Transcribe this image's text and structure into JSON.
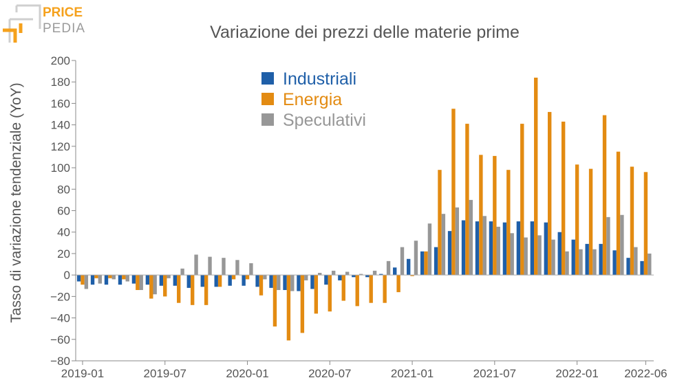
{
  "logo": {
    "line1": "PRICE",
    "line2": "PEDIA",
    "colors": {
      "orange": "#f5a11c",
      "grey": "#9b9b9b"
    }
  },
  "chart_data": {
    "type": "bar",
    "title": "Variazione dei prezzi delle materie prime",
    "xlabel": "",
    "ylabel": "Tasso di variazione tendenziale (YoY)",
    "ylim": [
      -80,
      200
    ],
    "yticks": [
      -80,
      -60,
      -40,
      -20,
      0,
      20,
      40,
      60,
      80,
      100,
      120,
      140,
      160,
      180,
      200
    ],
    "categories": [
      "2019-01",
      "2019-02",
      "2019-03",
      "2019-04",
      "2019-05",
      "2019-06",
      "2019-07",
      "2019-08",
      "2019-09",
      "2019-10",
      "2019-11",
      "2019-12",
      "2020-01",
      "2020-02",
      "2020-03",
      "2020-04",
      "2020-05",
      "2020-06",
      "2020-07",
      "2020-08",
      "2020-09",
      "2020-10",
      "2020-11",
      "2020-12",
      "2021-01",
      "2021-02",
      "2021-03",
      "2021-04",
      "2021-05",
      "2021-06",
      "2021-07",
      "2021-08",
      "2021-09",
      "2021-10",
      "2021-11",
      "2021-12",
      "2022-01",
      "2022-02",
      "2022-03",
      "2022-04",
      "2022-05",
      "2022-06"
    ],
    "xtick_labels": [
      {
        "index": 0,
        "label": "2019-01"
      },
      {
        "index": 6,
        "label": "2019-07"
      },
      {
        "index": 12,
        "label": "2020-01"
      },
      {
        "index": 18,
        "label": "2020-07"
      },
      {
        "index": 24,
        "label": "2021-01"
      },
      {
        "index": 30,
        "label": "2021-07"
      },
      {
        "index": 36,
        "label": "2022-01"
      },
      {
        "index": 41,
        "label": "2022-06"
      }
    ],
    "legend_position": "top-center",
    "series": [
      {
        "name": "Industriali",
        "color": "#1f5fa8",
        "values": [
          -6,
          -9,
          -9,
          -9,
          -8,
          -9,
          -10,
          -10,
          -12,
          -11,
          -11,
          -10,
          -10,
          -11,
          -12,
          -14,
          -15,
          -13,
          -9,
          -5,
          -2,
          -2,
          1,
          7,
          15,
          22,
          26,
          41,
          51,
          50,
          50,
          49,
          50,
          50,
          49,
          40,
          33,
          29,
          29,
          23,
          16,
          13
        ]
      },
      {
        "name": "Energia",
        "color": "#e38b12",
        "values": [
          -9,
          -3,
          -3,
          -4,
          -14,
          -22,
          -20,
          -26,
          -28,
          -28,
          -11,
          -4,
          -4,
          -19,
          -48,
          -61,
          -54,
          -36,
          -34,
          -24,
          -29,
          -26,
          -26,
          -16,
          -1,
          22,
          98,
          155,
          141,
          112,
          111,
          98,
          141,
          184,
          152,
          143,
          103,
          99,
          149,
          115,
          101,
          96
        ]
      },
      {
        "name": "Speculativi",
        "color": "#979797",
        "values": [
          -13,
          -8,
          -4,
          -6,
          -14,
          -18,
          -3,
          6,
          19,
          17,
          16,
          14,
          11,
          -4,
          -14,
          -15,
          -5,
          2,
          4,
          3,
          1,
          4,
          13,
          26,
          32,
          48,
          57,
          63,
          70,
          55,
          45,
          39,
          35,
          37,
          33,
          22,
          24,
          24,
          54,
          56,
          26,
          20
        ]
      }
    ]
  }
}
